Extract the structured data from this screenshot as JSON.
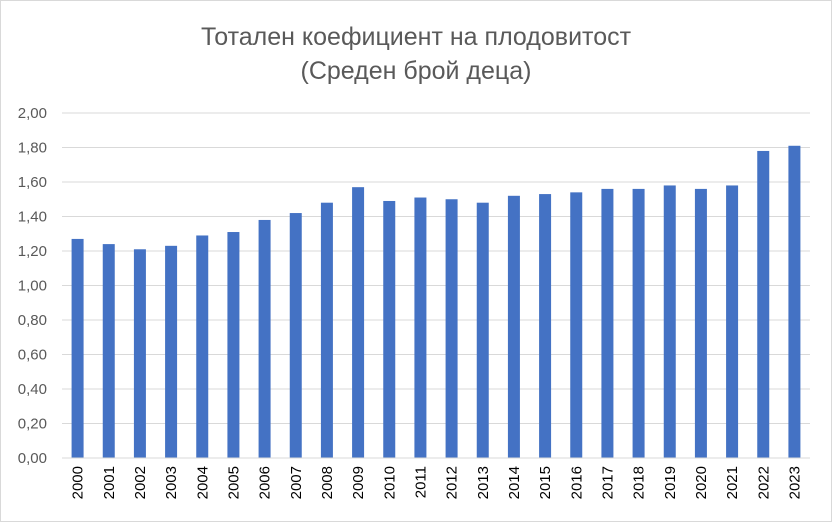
{
  "chart_data": {
    "type": "bar",
    "title": "Тотален коефициент на плодовитост",
    "subtitle": "(Среден брой деца)",
    "xlabel": "",
    "ylabel": "",
    "categories": [
      "2000",
      "2001",
      "2002",
      "2003",
      "2004",
      "2005",
      "2006",
      "2007",
      "2008",
      "2009",
      "2010",
      "2011",
      "2012",
      "2013",
      "2014",
      "2015",
      "2016",
      "2017",
      "2018",
      "2019",
      "2020",
      "2021",
      "2022",
      "2023"
    ],
    "values": [
      1.27,
      1.24,
      1.21,
      1.23,
      1.29,
      1.31,
      1.38,
      1.42,
      1.48,
      1.57,
      1.49,
      1.51,
      1.5,
      1.48,
      1.52,
      1.53,
      1.54,
      1.56,
      1.56,
      1.58,
      1.56,
      1.58,
      1.78,
      1.81
    ],
    "ylim": [
      0,
      2.0
    ],
    "yticks": [
      "0,00",
      "0,20",
      "0,40",
      "0,60",
      "0,80",
      "1,00",
      "1,20",
      "1,40",
      "1,60",
      "1,80",
      "2,00"
    ],
    "grid": true,
    "legend": "none",
    "bar_color": "#4472c4",
    "grid_color": "#d9d9d9"
  }
}
